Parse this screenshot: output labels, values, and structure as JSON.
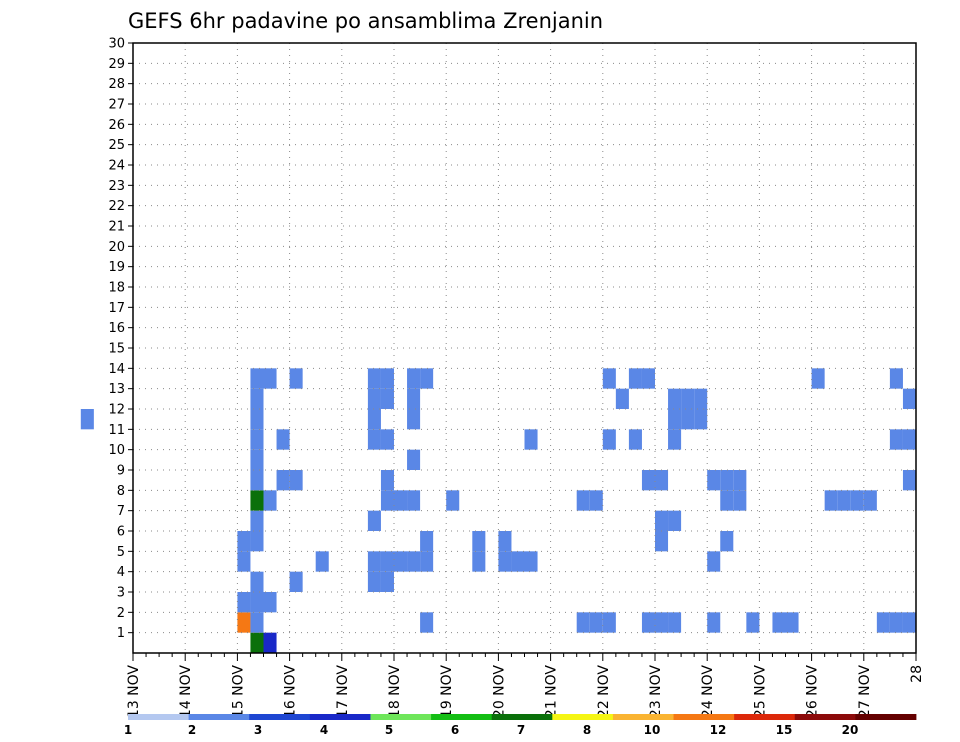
{
  "chart_data": {
    "type": "heatmap",
    "title": "GEFS 6hr padavine po ansamblima Zrenjanin",
    "x_ticks": [
      "13 NOV",
      "14 NOV",
      "15 NOV",
      "16 NOV",
      "17 NOV",
      "18 NOV",
      "19 NOV",
      "20 NOV",
      "21 NOV",
      "22 NOV",
      "23 NOV",
      "24 NOV",
      "25 NOV",
      "26 NOV",
      "27 NOV",
      "28"
    ],
    "x_range": [
      "13 NOV 00Z",
      "28 NOV 00Z"
    ],
    "time_step_hours": 6,
    "y_ticks": [
      1,
      2,
      3,
      4,
      5,
      6,
      7,
      8,
      9,
      10,
      11,
      12,
      13,
      14,
      15,
      16,
      17,
      18,
      19,
      20,
      21,
      22,
      23,
      24,
      25,
      26,
      27,
      28,
      29,
      30
    ],
    "y_range": [
      0,
      30
    ],
    "grid": true,
    "legend": {
      "placement": "bottom",
      "labels": [
        "1",
        "2",
        "3",
        "4",
        "5",
        "6",
        "7",
        "8",
        "10",
        "12",
        "15",
        "20"
      ],
      "colors": [
        "#b4c8f0",
        "#5a87e6",
        "#1e46d2",
        "#1928c8",
        "#6ee65a",
        "#14be14",
        "#0a700a",
        "#f5f514",
        "#fab432",
        "#f57814",
        "#dc280a",
        "#8c0a0a",
        "#640000"
      ]
    },
    "points": [
      {
        "day": "15 NOV",
        "hour": 6,
        "member": 0,
        "cls": 6
      },
      {
        "day": "15 NOV",
        "hour": 12,
        "member": 0,
        "cls": 3
      },
      {
        "day": "15 NOV",
        "hour": 0,
        "member": 1,
        "cls": 9
      },
      {
        "day": "15 NOV",
        "hour": 6,
        "member": 1,
        "cls": 1
      },
      {
        "day": "18 NOV",
        "hour": 12,
        "member": 1,
        "cls": 1
      },
      {
        "day": "21 NOV",
        "hour": 12,
        "member": 1,
        "cls": 1
      },
      {
        "day": "21 NOV",
        "hour": 18,
        "member": 1,
        "cls": 1
      },
      {
        "day": "22 NOV",
        "hour": 0,
        "member": 1,
        "cls": 1
      },
      {
        "day": "22 NOV",
        "hour": 18,
        "member": 1,
        "cls": 1
      },
      {
        "day": "23 NOV",
        "hour": 0,
        "member": 1,
        "cls": 1
      },
      {
        "day": "23 NOV",
        "hour": 6,
        "member": 1,
        "cls": 1
      },
      {
        "day": "24 NOV",
        "hour": 0,
        "member": 1,
        "cls": 1
      },
      {
        "day": "24 NOV",
        "hour": 18,
        "member": 1,
        "cls": 1
      },
      {
        "day": "25 NOV",
        "hour": 6,
        "member": 1,
        "cls": 1
      },
      {
        "day": "25 NOV",
        "hour": 12,
        "member": 1,
        "cls": 1
      },
      {
        "day": "27 NOV",
        "hour": 6,
        "member": 1,
        "cls": 1
      },
      {
        "day": "27 NOV",
        "hour": 12,
        "member": 1,
        "cls": 1
      },
      {
        "day": "27 NOV",
        "hour": 18,
        "member": 1,
        "cls": 1
      },
      {
        "day": "15 NOV",
        "hour": 0,
        "member": 2,
        "cls": 1
      },
      {
        "day": "15 NOV",
        "hour": 6,
        "member": 2,
        "cls": 1
      },
      {
        "day": "15 NOV",
        "hour": 12,
        "member": 2,
        "cls": 1
      },
      {
        "day": "15 NOV",
        "hour": 6,
        "member": 3,
        "cls": 1
      },
      {
        "day": "16 NOV",
        "hour": 0,
        "member": 3,
        "cls": 1
      },
      {
        "day": "17 NOV",
        "hour": 12,
        "member": 3,
        "cls": 1
      },
      {
        "day": "17 NOV",
        "hour": 18,
        "member": 3,
        "cls": 1
      },
      {
        "day": "15 NOV",
        "hour": 0,
        "member": 4,
        "cls": 1
      },
      {
        "day": "16 NOV",
        "hour": 12,
        "member": 4,
        "cls": 1
      },
      {
        "day": "17 NOV",
        "hour": 12,
        "member": 4,
        "cls": 1
      },
      {
        "day": "17 NOV",
        "hour": 18,
        "member": 4,
        "cls": 1
      },
      {
        "day": "18 NOV",
        "hour": 0,
        "member": 4,
        "cls": 1
      },
      {
        "day": "18 NOV",
        "hour": 6,
        "member": 4,
        "cls": 1
      },
      {
        "day": "18 NOV",
        "hour": 12,
        "member": 4,
        "cls": 1
      },
      {
        "day": "19 NOV",
        "hour": 12,
        "member": 4,
        "cls": 1
      },
      {
        "day": "20 NOV",
        "hour": 0,
        "member": 4,
        "cls": 1
      },
      {
        "day": "20 NOV",
        "hour": 6,
        "member": 4,
        "cls": 1
      },
      {
        "day": "20 NOV",
        "hour": 12,
        "member": 4,
        "cls": 1
      },
      {
        "day": "24 NOV",
        "hour": 0,
        "member": 4,
        "cls": 1
      },
      {
        "day": "15 NOV",
        "hour": 0,
        "member": 5,
        "cls": 1
      },
      {
        "day": "15 NOV",
        "hour": 6,
        "member": 5,
        "cls": 1
      },
      {
        "day": "18 NOV",
        "hour": 12,
        "member": 5,
        "cls": 1
      },
      {
        "day": "19 NOV",
        "hour": 12,
        "member": 5,
        "cls": 1
      },
      {
        "day": "20 NOV",
        "hour": 0,
        "member": 5,
        "cls": 1
      },
      {
        "day": "23 NOV",
        "hour": 0,
        "member": 5,
        "cls": 1
      },
      {
        "day": "24 NOV",
        "hour": 6,
        "member": 5,
        "cls": 1
      },
      {
        "day": "15 NOV",
        "hour": 6,
        "member": 6,
        "cls": 1
      },
      {
        "day": "17 NOV",
        "hour": 12,
        "member": 6,
        "cls": 1
      },
      {
        "day": "23 NOV",
        "hour": 0,
        "member": 6,
        "cls": 1
      },
      {
        "day": "23 NOV",
        "hour": 6,
        "member": 6,
        "cls": 1
      },
      {
        "day": "15 NOV",
        "hour": 6,
        "member": 7,
        "cls": 6
      },
      {
        "day": "15 NOV",
        "hour": 12,
        "member": 7,
        "cls": 1
      },
      {
        "day": "17 NOV",
        "hour": 18,
        "member": 7,
        "cls": 1
      },
      {
        "day": "18 NOV",
        "hour": 0,
        "member": 7,
        "cls": 1
      },
      {
        "day": "18 NOV",
        "hour": 6,
        "member": 7,
        "cls": 1
      },
      {
        "day": "19 NOV",
        "hour": 0,
        "member": 7,
        "cls": 1
      },
      {
        "day": "21 NOV",
        "hour": 12,
        "member": 7,
        "cls": 1
      },
      {
        "day": "21 NOV",
        "hour": 18,
        "member": 7,
        "cls": 1
      },
      {
        "day": "24 NOV",
        "hour": 6,
        "member": 7,
        "cls": 1
      },
      {
        "day": "24 NOV",
        "hour": 12,
        "member": 7,
        "cls": 1
      },
      {
        "day": "26 NOV",
        "hour": 6,
        "member": 7,
        "cls": 1
      },
      {
        "day": "26 NOV",
        "hour": 12,
        "member": 7,
        "cls": 1
      },
      {
        "day": "26 NOV",
        "hour": 18,
        "member": 7,
        "cls": 1
      },
      {
        "day": "27 NOV",
        "hour": 0,
        "member": 7,
        "cls": 1
      },
      {
        "day": "15 NOV",
        "hour": 6,
        "member": 8,
        "cls": 1
      },
      {
        "day": "15 NOV",
        "hour": 18,
        "member": 8,
        "cls": 1
      },
      {
        "day": "16 NOV",
        "hour": 0,
        "member": 8,
        "cls": 1
      },
      {
        "day": "17 NOV",
        "hour": 18,
        "member": 8,
        "cls": 1
      },
      {
        "day": "22 NOV",
        "hour": 18,
        "member": 8,
        "cls": 1
      },
      {
        "day": "23 NOV",
        "hour": 0,
        "member": 8,
        "cls": 1
      },
      {
        "day": "24 NOV",
        "hour": 0,
        "member": 8,
        "cls": 1
      },
      {
        "day": "24 NOV",
        "hour": 6,
        "member": 8,
        "cls": 1
      },
      {
        "day": "24 NOV",
        "hour": 12,
        "member": 8,
        "cls": 1
      },
      {
        "day": "27 NOV",
        "hour": 18,
        "member": 8,
        "cls": 1
      },
      {
        "day": "15 NOV",
        "hour": 6,
        "member": 9,
        "cls": 1
      },
      {
        "day": "18 NOV",
        "hour": 6,
        "member": 9,
        "cls": 1
      },
      {
        "day": "15 NOV",
        "hour": 6,
        "member": 10,
        "cls": 1
      },
      {
        "day": "15 NOV",
        "hour": 18,
        "member": 10,
        "cls": 1
      },
      {
        "day": "17 NOV",
        "hour": 12,
        "member": 10,
        "cls": 1
      },
      {
        "day": "17 NOV",
        "hour": 18,
        "member": 10,
        "cls": 1
      },
      {
        "day": "20 NOV",
        "hour": 12,
        "member": 10,
        "cls": 1
      },
      {
        "day": "22 NOV",
        "hour": 0,
        "member": 10,
        "cls": 1
      },
      {
        "day": "22 NOV",
        "hour": 12,
        "member": 10,
        "cls": 1
      },
      {
        "day": "23 NOV",
        "hour": 6,
        "member": 10,
        "cls": 1
      },
      {
        "day": "27 NOV",
        "hour": 12,
        "member": 10,
        "cls": 1
      },
      {
        "day": "27 NOV",
        "hour": 18,
        "member": 10,
        "cls": 1
      },
      {
        "day": "15 NOV",
        "hour": 6,
        "member": 11,
        "cls": 1
      },
      {
        "day": "17 NOV",
        "hour": 12,
        "member": 11,
        "cls": 1
      },
      {
        "day": "18 NOV",
        "hour": 6,
        "member": 11,
        "cls": 1
      },
      {
        "day": "23 NOV",
        "hour": 6,
        "member": 11,
        "cls": 1
      },
      {
        "day": "23 NOV",
        "hour": 12,
        "member": 11,
        "cls": 1
      },
      {
        "day": "23 NOV",
        "hour": 18,
        "member": 11,
        "cls": 1
      },
      {
        "day": "28 NOV",
        "hour": 0,
        "member": 11,
        "cls": 1
      },
      {
        "day": "15 NOV",
        "hour": 6,
        "member": 12,
        "cls": 1
      },
      {
        "day": "17 NOV",
        "hour": 12,
        "member": 12,
        "cls": 1
      },
      {
        "day": "17 NOV",
        "hour": 18,
        "member": 12,
        "cls": 1
      },
      {
        "day": "18 NOV",
        "hour": 6,
        "member": 12,
        "cls": 1
      },
      {
        "day": "22 NOV",
        "hour": 6,
        "member": 12,
        "cls": 1
      },
      {
        "day": "23 NOV",
        "hour": 6,
        "member": 12,
        "cls": 1
      },
      {
        "day": "23 NOV",
        "hour": 12,
        "member": 12,
        "cls": 1
      },
      {
        "day": "23 NOV",
        "hour": 18,
        "member": 12,
        "cls": 1
      },
      {
        "day": "27 NOV",
        "hour": 18,
        "member": 12,
        "cls": 1
      },
      {
        "day": "15 NOV",
        "hour": 6,
        "member": 13,
        "cls": 1
      },
      {
        "day": "15 NOV",
        "hour": 12,
        "member": 13,
        "cls": 1
      },
      {
        "day": "16 NOV",
        "hour": 0,
        "member": 13,
        "cls": 1
      },
      {
        "day": "17 NOV",
        "hour": 12,
        "member": 13,
        "cls": 1
      },
      {
        "day": "17 NOV",
        "hour": 18,
        "member": 13,
        "cls": 1
      },
      {
        "day": "18 NOV",
        "hour": 6,
        "member": 13,
        "cls": 1
      },
      {
        "day": "18 NOV",
        "hour": 12,
        "member": 13,
        "cls": 1
      },
      {
        "day": "22 NOV",
        "hour": 0,
        "member": 13,
        "cls": 1
      },
      {
        "day": "22 NOV",
        "hour": 12,
        "member": 13,
        "cls": 1
      },
      {
        "day": "22 NOV",
        "hour": 18,
        "member": 13,
        "cls": 1
      },
      {
        "day": "26 NOV",
        "hour": 0,
        "member": 13,
        "cls": 1
      },
      {
        "day": "27 NOV",
        "hour": 12,
        "member": 13,
        "cls": 1
      }
    ],
    "notes_scale": "values above are class indices into legend.colors"
  }
}
